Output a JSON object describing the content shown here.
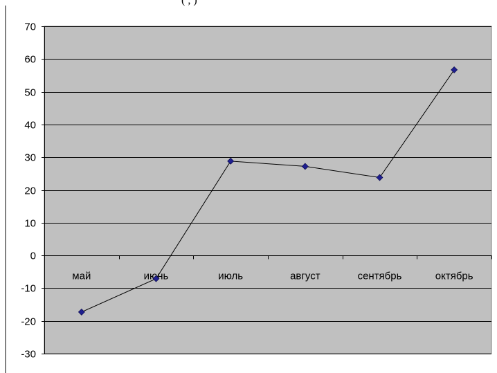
{
  "header_fragment": "(            ,  )",
  "chart_data": {
    "type": "line",
    "title": "",
    "xlabel": "",
    "ylabel": "",
    "categories": [
      "май",
      "июнь",
      "июль",
      "август",
      "сентябрь",
      "октябрь"
    ],
    "series": [
      {
        "values": [
          -17.3,
          -7.1,
          28.8,
          27.2,
          23.8,
          56.7
        ]
      }
    ],
    "ylim": [
      -30,
      70
    ],
    "yticks": [
      70,
      60,
      50,
      40,
      30,
      20,
      10,
      0,
      -10,
      -20,
      -30
    ],
    "grid": true,
    "legend": "none",
    "colors": {
      "plot_background": "#c0c0c0",
      "line": "#000000",
      "marker": "#1f1f8f",
      "gridline": "#000000"
    }
  }
}
